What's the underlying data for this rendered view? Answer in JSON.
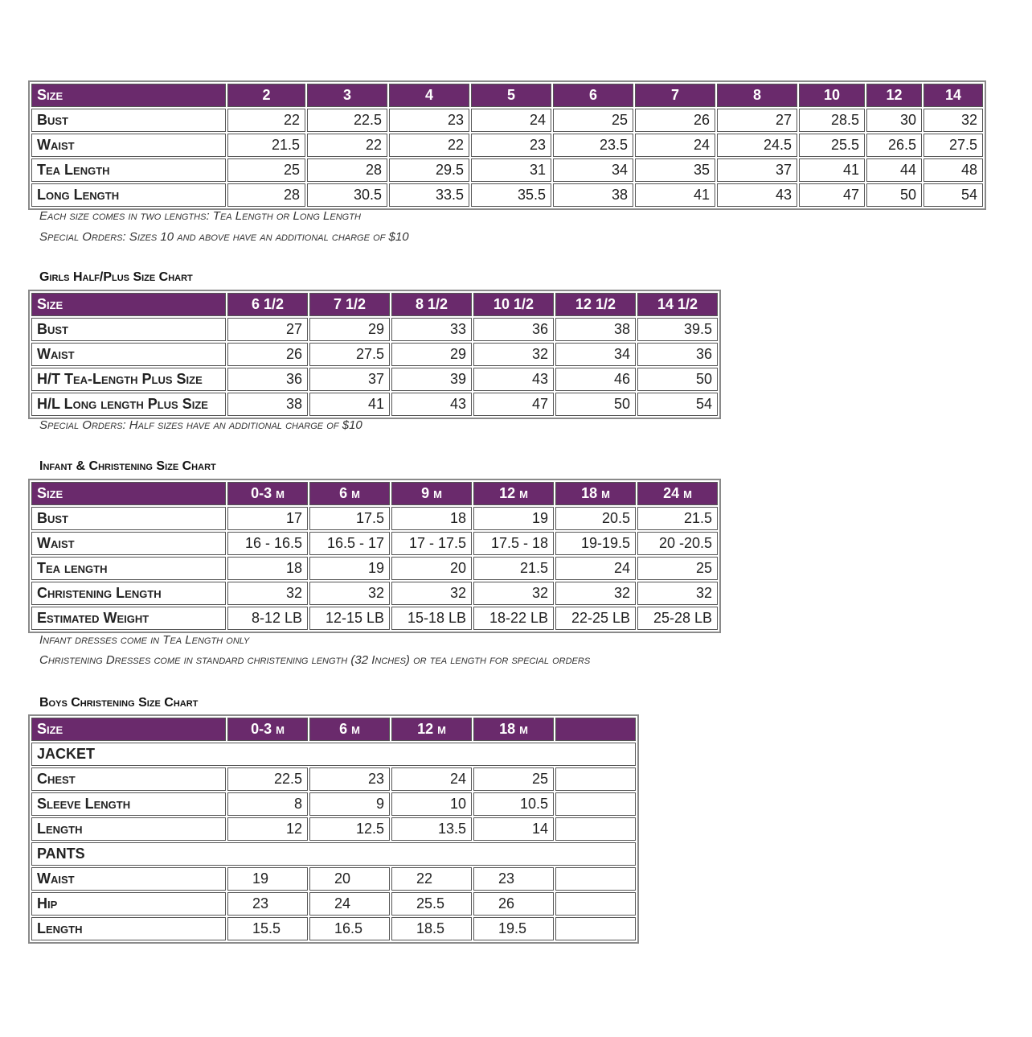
{
  "tables": [
    {
      "header": [
        "Size",
        "2",
        "3",
        "4",
        "5",
        "6",
        "7",
        "8",
        "10",
        "12",
        "14"
      ],
      "rows": [
        [
          "Bust",
          "22",
          "22.5",
          "23",
          "24",
          "25",
          "26",
          "27",
          "28.5",
          "30",
          "32"
        ],
        [
          "Waist",
          "21.5",
          "22",
          "22",
          "23",
          "23.5",
          "24",
          "24.5",
          "25.5",
          "26.5",
          "27.5"
        ],
        [
          "Tea Length",
          "25",
          "28",
          "29.5",
          "31",
          "34",
          "35",
          "37",
          "41",
          "44",
          "48"
        ],
        [
          "Long Length",
          "28",
          "30.5",
          "33.5",
          "35.5",
          "38",
          "41",
          "43",
          "47",
          "50",
          "54"
        ]
      ],
      "notes": [
        "Each size comes in two lengths: Tea Length or Long Length",
        "Special Orders: Sizes 10 and above have an additional charge of $10"
      ]
    },
    {
      "title": "Girls Half/Plus Size Chart",
      "header": [
        "Size",
        "6 1/2",
        "7 1/2",
        "8 1/2",
        "10 1/2",
        "12 1/2",
        "14 1/2"
      ],
      "rows": [
        [
          "Bust",
          "27",
          "29",
          "33",
          "36",
          "38",
          "39.5"
        ],
        [
          "Waist",
          "26",
          "27.5",
          "29",
          "32",
          "34",
          "36"
        ],
        [
          "H/T Tea-Length Plus Size",
          "36",
          "37",
          "39",
          "43",
          "46",
          "50"
        ],
        [
          "H/L Long length Plus Size",
          "38",
          "41",
          "43",
          "47",
          "50",
          "54"
        ]
      ],
      "notes": [
        "Special Orders: Half sizes have an additional charge of $10"
      ]
    },
    {
      "title": "Infant & Christening Size Chart",
      "header": [
        "Size",
        "0-3 m",
        "6 m",
        "9 m",
        "12 m",
        "18 m",
        "24 m"
      ],
      "rows": [
        [
          "Bust",
          "17",
          "17.5",
          "18",
          "19",
          "20.5",
          "21.5"
        ],
        [
          "Waist",
          "16 - 16.5",
          "16.5 - 17",
          "17 - 17.5",
          "17.5 - 18",
          "19-19.5",
          "20 -20.5"
        ],
        [
          "Tea length",
          "18",
          "19",
          "20",
          "21.5",
          "24",
          "25"
        ],
        [
          "Christening Length",
          "32",
          "32",
          "32",
          "32",
          "32",
          "32"
        ],
        [
          "Estimated Weight",
          "8-12 LB",
          "12-15 LB",
          "15-18 LB",
          "18-22 LB",
          "22-25 LB",
          "25-28 LB"
        ]
      ],
      "notes": [
        "Infant dresses come in Tea Length only",
        "Christening Dresses come in standard christening length (32 Inches) or tea length for special orders"
      ]
    },
    {
      "title": "Boys Christening Size Chart",
      "header": [
        "Size",
        "0-3 m",
        "6 m",
        "12 m",
        "18 m"
      ],
      "groups": [
        {
          "label": "JACKET",
          "rows": [
            [
              "Chest",
              "22.5",
              "23",
              "24",
              "25"
            ],
            [
              "Sleeve Length",
              "8",
              "9",
              "10",
              "10.5"
            ],
            [
              "Length",
              "12",
              "12.5",
              "13.5",
              "14"
            ]
          ]
        },
        {
          "label": "PANTS",
          "rows": [
            [
              "Waist",
              "19",
              "20",
              "22",
              "23"
            ],
            [
              "Hip",
              "23",
              "24",
              "25.5",
              "26"
            ],
            [
              "Length",
              "15.5",
              "16.5",
              "18.5",
              "19.5"
            ]
          ]
        }
      ]
    }
  ]
}
